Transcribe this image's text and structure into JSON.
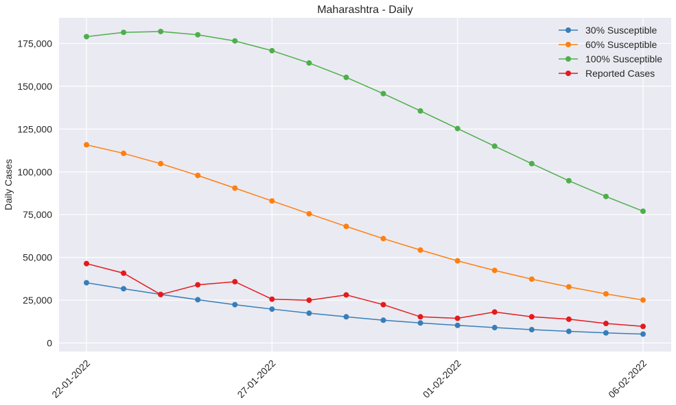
{
  "chart_data": {
    "type": "line",
    "title": "Maharashtra - Daily",
    "xlabel": "",
    "ylabel": "Daily Cases",
    "x": [
      "22-01-2022",
      "23-01-2022",
      "24-01-2022",
      "25-01-2022",
      "26-01-2022",
      "27-01-2022",
      "28-01-2022",
      "29-01-2022",
      "30-01-2022",
      "31-01-2022",
      "01-02-2022",
      "02-02-2022",
      "03-02-2022",
      "04-02-2022",
      "05-02-2022",
      "06-02-2022"
    ],
    "x_ticks": [
      "22-01-2022",
      "27-01-2022",
      "01-02-2022",
      "06-02-2022"
    ],
    "ylim": [
      -5000,
      190000
    ],
    "y_ticks": [
      0,
      25000,
      50000,
      75000,
      100000,
      125000,
      150000,
      175000
    ],
    "y_tick_labels": [
      "0",
      "25,000",
      "50,000",
      "75,000",
      "100,000",
      "125,000",
      "150,000",
      "175,000"
    ],
    "grid": true,
    "legend_position": "top-right",
    "series": [
      {
        "name": "30% Susceptible",
        "color": "#377eb8",
        "values": [
          35200,
          31700,
          28400,
          25300,
          22400,
          19800,
          17400,
          15300,
          13300,
          11700,
          10300,
          9000,
          7800,
          6800,
          5900,
          5200
        ]
      },
      {
        "name": "60% Susceptible",
        "color": "#ff7f0e",
        "values": [
          115800,
          110800,
          104800,
          97900,
          90500,
          83000,
          75500,
          68100,
          61000,
          54300,
          48000,
          42400,
          37300,
          32800,
          28700,
          25100
        ]
      },
      {
        "name": "100% Susceptible",
        "color": "#4daf4a",
        "values": [
          179000,
          181500,
          182000,
          180100,
          176500,
          170800,
          163600,
          155200,
          145700,
          135600,
          125300,
          115000,
          104800,
          94800,
          85600,
          77000
        ]
      },
      {
        "name": "Reported Cases",
        "color": "#e41a1c",
        "values": [
          46400,
          40800,
          28300,
          34000,
          35800,
          25600,
          25000,
          28100,
          22400,
          15300,
          14400,
          18100,
          15300,
          13900,
          11400,
          9700
        ]
      }
    ]
  }
}
